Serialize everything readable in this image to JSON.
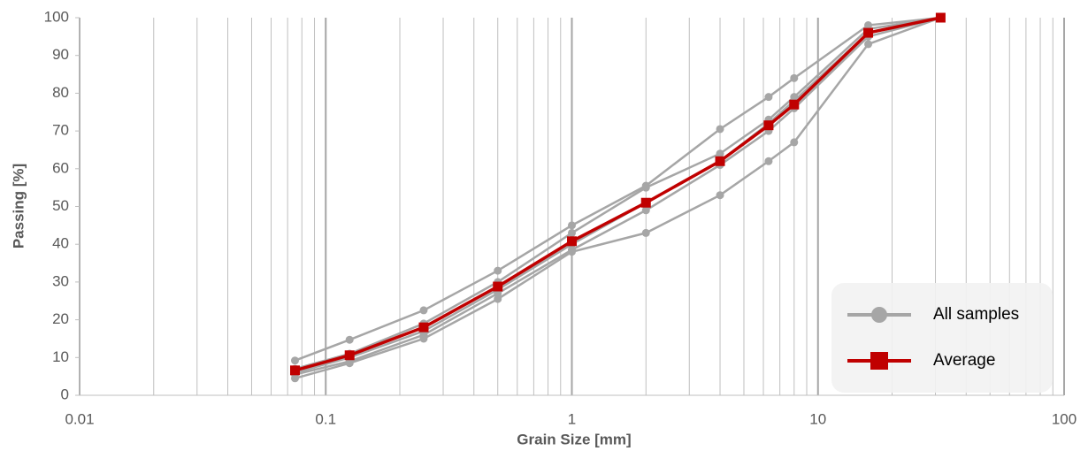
{
  "chart_data": {
    "type": "line",
    "x_label": "Grain Size [mm]",
    "y_label": "Passing [%]",
    "x": [
      0.075,
      0.125,
      0.25,
      0.5,
      1,
      2,
      4,
      6.3,
      8,
      16,
      31.5
    ],
    "samples": {
      "name": "All samples",
      "color": "#a6a6a6",
      "values": [
        [
          9.2,
          14.7,
          22.5,
          33,
          45,
          55.5,
          70.5,
          79,
          84,
          98,
          100
        ],
        [
          7,
          11,
          19,
          30,
          43,
          55,
          64,
          73,
          79,
          97,
          100
        ],
        [
          6,
          10,
          17,
          28,
          40,
          51,
          62,
          72,
          78,
          96,
          100
        ],
        [
          5.5,
          9,
          16,
          27,
          38.5,
          49,
          61,
          70,
          76,
          95,
          100
        ],
        [
          4.5,
          8.5,
          15,
          25.5,
          38,
          43,
          53,
          62,
          67,
          93,
          100
        ]
      ]
    },
    "series": [
      {
        "name": "Average",
        "color": "#c00000",
        "values": [
          6.6,
          10.6,
          18,
          28.8,
          40.8,
          51,
          62,
          71.5,
          77,
          96,
          100
        ]
      }
    ],
    "xlim": [
      0.01,
      100
    ],
    "xticks": [
      0.01,
      0.1,
      1,
      10,
      100
    ],
    "x_log": true,
    "ylim": [
      0,
      100
    ],
    "yticks": [
      0,
      10,
      20,
      30,
      40,
      50,
      60,
      70,
      80,
      90,
      100
    ],
    "grid": true,
    "legend": "lower right"
  }
}
